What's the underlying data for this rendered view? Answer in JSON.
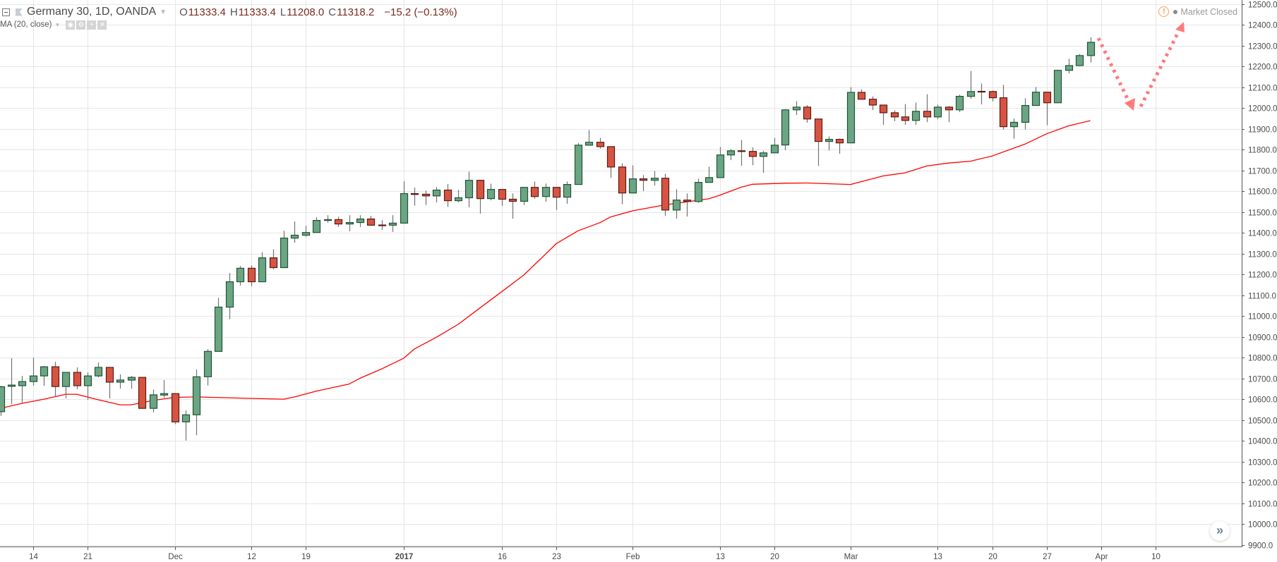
{
  "header": {
    "symbol_title": "Germany 30, 1D, OANDA",
    "ohlc": [
      {
        "key": "O",
        "value": "11333.4"
      },
      {
        "key": "H",
        "value": "11333.4"
      },
      {
        "key": "L",
        "value": "11208.0"
      },
      {
        "key": "C",
        "value": "11318.2"
      }
    ],
    "change": "−15.2 (−0.13%)",
    "study_label": "MA (20, close)",
    "study_buttons": [
      "eye-icon",
      "gear-icon",
      "plus-icon",
      "close-icon"
    ],
    "market_status": "Market Closed",
    "market_status_icon": "warning-icon"
  },
  "scroll_button_icon": "double-chevron-right-icon",
  "colors": {
    "up_fill": "#6ba583",
    "up_border": "#225437",
    "down_fill": "#d75442",
    "down_border": "#5b1a13",
    "wick": "#737375",
    "ma": "#ff0000",
    "annotation": "#ff7b7b",
    "grid": "#e6e6e6"
  },
  "chart_data": {
    "type": "candlestick",
    "title": "",
    "ylim": [
      9900,
      12500
    ],
    "grid": true,
    "y_ticks": [
      "12500.0",
      "12400.0",
      "12300.0",
      "12200.0",
      "12100.0",
      "12000.0",
      "11900.0",
      "11800.0",
      "11700.0",
      "11600.0",
      "11500.0",
      "11400.0",
      "11300.0",
      "11200.0",
      "11100.0",
      "11000.0",
      "10900.0",
      "10800.0",
      "10700.0",
      "10600.0",
      "10500.0",
      "10400.0",
      "10300.0",
      "10200.0",
      "10100.0",
      "10000.0",
      "9900.0"
    ],
    "x_ticks": [
      {
        "date": "2016-11-14",
        "label": "14"
      },
      {
        "date": "2016-11-21",
        "label": "21"
      },
      {
        "date": "2016-12-01",
        "label": "Dec"
      },
      {
        "date": "2016-12-12",
        "label": "12"
      },
      {
        "date": "2016-12-19",
        "label": "19"
      },
      {
        "date": "2017-01-03",
        "label": "2017",
        "bold": true
      },
      {
        "date": "2017-01-16",
        "label": "16"
      },
      {
        "date": "2017-01-23",
        "label": "23"
      },
      {
        "date": "2017-02-01",
        "label": "Feb"
      },
      {
        "date": "2017-02-13",
        "label": "13"
      },
      {
        "date": "2017-02-20",
        "label": "20"
      },
      {
        "date": "2017-03-01",
        "label": "Mar"
      },
      {
        "date": "2017-03-13",
        "label": "13"
      },
      {
        "date": "2017-03-20",
        "label": "20"
      },
      {
        "date": "2017-03-27",
        "label": "27"
      },
      {
        "date": "2017-04-03",
        "label": "Apr"
      },
      {
        "date": "2017-04-10",
        "label": "10"
      }
    ],
    "future_dates": [
      "2017-04-03",
      "2017-04-04",
      "2017-04-05",
      "2017-04-06",
      "2017-04-07",
      "2017-04-10"
    ],
    "candles_fields": [
      "date",
      "open",
      "high",
      "low",
      "close"
    ],
    "candles": [
      [
        "2016-11-09",
        10540,
        10665,
        10520,
        10660
      ],
      [
        "2016-11-10",
        10662,
        10797,
        10577,
        10668
      ],
      [
        "2016-11-11",
        10665,
        10712,
        10583,
        10685
      ],
      [
        "2016-11-14",
        10685,
        10800,
        10665,
        10712
      ],
      [
        "2016-11-15",
        10712,
        10760,
        10665,
        10756
      ],
      [
        "2016-11-16",
        10756,
        10780,
        10610,
        10661
      ],
      [
        "2016-11-17",
        10661,
        10729,
        10604,
        10729
      ],
      [
        "2016-11-18",
        10729,
        10753,
        10648,
        10665
      ],
      [
        "2016-11-21",
        10665,
        10729,
        10597,
        10712
      ],
      [
        "2016-11-22",
        10712,
        10777,
        10705,
        10753
      ],
      [
        "2016-11-23",
        10753,
        10753,
        10604,
        10682
      ],
      [
        "2016-11-24",
        10682,
        10719,
        10651,
        10692
      ],
      [
        "2016-11-25",
        10692,
        10712,
        10651,
        10705
      ],
      [
        "2016-11-28",
        10705,
        10705,
        10556,
        10556
      ],
      [
        "2016-11-29",
        10556,
        10646,
        10537,
        10621
      ],
      [
        "2016-11-30",
        10620,
        10692,
        10607,
        10627
      ],
      [
        "2016-12-01",
        10627,
        10627,
        10480,
        10491
      ],
      [
        "2016-12-02",
        10491,
        10546,
        10401,
        10525
      ],
      [
        "2016-12-05",
        10525,
        10743,
        10427,
        10708
      ],
      [
        "2016-12-06",
        10708,
        10841,
        10666,
        10830
      ],
      [
        "2016-12-07",
        10830,
        11088,
        10830,
        11043
      ],
      [
        "2016-12-08",
        11043,
        11207,
        10985,
        11165
      ],
      [
        "2016-12-09",
        11165,
        11241,
        11147,
        11230
      ],
      [
        "2016-12-12",
        11230,
        11244,
        11144,
        11165
      ],
      [
        "2016-12-13",
        11165,
        11307,
        11165,
        11280
      ],
      [
        "2016-12-14",
        11280,
        11321,
        11225,
        11233
      ],
      [
        "2016-12-15",
        11233,
        11410,
        11233,
        11375
      ],
      [
        "2016-12-16",
        11375,
        11455,
        11353,
        11389
      ],
      [
        "2016-12-19",
        11389,
        11434,
        11382,
        11402
      ],
      [
        "2016-12-20",
        11402,
        11475,
        11402,
        11460
      ],
      [
        "2016-12-21",
        11460,
        11485,
        11449,
        11464
      ],
      [
        "2016-12-22",
        11464,
        11478,
        11429,
        11443
      ],
      [
        "2016-12-23",
        11443,
        11485,
        11408,
        11450
      ],
      [
        "2016-12-27",
        11450,
        11485,
        11429,
        11467
      ],
      [
        "2016-12-28",
        11467,
        11482,
        11437,
        11437
      ],
      [
        "2016-12-29",
        11438,
        11461,
        11415,
        11436
      ],
      [
        "2016-12-30",
        11437,
        11485,
        11405,
        11447
      ],
      [
        "2017-01-03",
        11447,
        11648,
        11447,
        11589
      ],
      [
        "2017-01-04",
        11589,
        11618,
        11531,
        11585
      ],
      [
        "2017-01-05",
        11586,
        11604,
        11534,
        11578
      ],
      [
        "2017-01-06",
        11578,
        11621,
        11547,
        11606
      ],
      [
        "2017-01-09",
        11606,
        11635,
        11525,
        11555
      ],
      [
        "2017-01-10",
        11555,
        11607,
        11547,
        11569
      ],
      [
        "2017-01-11",
        11569,
        11695,
        11523,
        11653
      ],
      [
        "2017-01-12",
        11653,
        11653,
        11493,
        11565
      ],
      [
        "2017-01-13",
        11565,
        11637,
        11557,
        11609
      ],
      [
        "2017-01-16",
        11609,
        11609,
        11530,
        11562
      ],
      [
        "2017-01-17",
        11562,
        11590,
        11468,
        11552
      ],
      [
        "2017-01-18",
        11552,
        11619,
        11534,
        11619
      ],
      [
        "2017-01-19",
        11619,
        11647,
        11564,
        11575
      ],
      [
        "2017-01-20",
        11575,
        11637,
        11550,
        11619
      ],
      [
        "2017-01-23",
        11619,
        11619,
        11510,
        11572
      ],
      [
        "2017-01-24",
        11572,
        11647,
        11540,
        11633
      ],
      [
        "2017-01-25",
        11633,
        11833,
        11633,
        11822
      ],
      [
        "2017-01-26",
        11822,
        11894,
        11822,
        11836
      ],
      [
        "2017-01-27",
        11836,
        11857,
        11805,
        11815
      ],
      [
        "2017-01-30",
        11815,
        11815,
        11665,
        11717
      ],
      [
        "2017-01-31",
        11717,
        11735,
        11538,
        11592
      ],
      [
        "2017-02-01",
        11592,
        11725,
        11592,
        11660
      ],
      [
        "2017-02-02",
        11660,
        11678,
        11601,
        11653
      ],
      [
        "2017-02-03",
        11653,
        11698,
        11628,
        11663
      ],
      [
        "2017-02-06",
        11663,
        11684,
        11482,
        11510
      ],
      [
        "2017-02-07",
        11510,
        11610,
        11469,
        11558
      ],
      [
        "2017-02-08",
        11558,
        11590,
        11479,
        11551
      ],
      [
        "2017-02-09",
        11551,
        11661,
        11545,
        11643
      ],
      [
        "2017-02-10",
        11643,
        11718,
        11643,
        11666
      ],
      [
        "2017-02-13",
        11666,
        11813,
        11666,
        11775
      ],
      [
        "2017-02-14",
        11775,
        11803,
        11750,
        11795
      ],
      [
        "2017-02-15",
        11795,
        11847,
        11723,
        11792
      ],
      [
        "2017-02-16",
        11792,
        11812,
        11726,
        11768
      ],
      [
        "2017-02-17",
        11768,
        11795,
        11689,
        11785
      ],
      [
        "2017-02-20",
        11785,
        11857,
        11785,
        11822
      ],
      [
        "2017-02-21",
        11823,
        11996,
        11798,
        11992
      ],
      [
        "2017-02-22",
        11992,
        12034,
        11967,
        12005
      ],
      [
        "2017-02-23",
        12005,
        12015,
        11930,
        11948
      ],
      [
        "2017-02-24",
        11948,
        11948,
        11722,
        11840
      ],
      [
        "2017-02-27",
        11840,
        11864,
        11796,
        11850
      ],
      [
        "2017-02-28",
        11850,
        11854,
        11781,
        11833
      ],
      [
        "2017-03-01",
        11833,
        12101,
        11833,
        12076
      ],
      [
        "2017-03-02",
        12076,
        12091,
        12043,
        12043
      ],
      [
        "2017-03-03",
        12043,
        12057,
        11991,
        12015
      ],
      [
        "2017-03-06",
        12015,
        12015,
        11920,
        11978
      ],
      [
        "2017-03-07",
        11978,
        11990,
        11937,
        11958
      ],
      [
        "2017-03-08",
        11958,
        12020,
        11920,
        11941
      ],
      [
        "2017-03-09",
        11941,
        12027,
        11920,
        11985
      ],
      [
        "2017-03-10",
        11985,
        12067,
        11933,
        11958
      ],
      [
        "2017-03-13",
        11958,
        12017,
        11947,
        12005
      ],
      [
        "2017-03-14",
        12005,
        12010,
        11932,
        11992
      ],
      [
        "2017-03-15",
        11992,
        12065,
        11981,
        12057
      ],
      [
        "2017-03-16",
        12057,
        12179,
        12045,
        12080
      ],
      [
        "2017-03-17",
        12081,
        12119,
        12018,
        12079
      ],
      [
        "2017-03-20",
        12080,
        12085,
        12032,
        12050
      ],
      [
        "2017-03-21",
        12050,
        12112,
        11897,
        11911
      ],
      [
        "2017-03-22",
        11911,
        11950,
        11853,
        11932
      ],
      [
        "2017-03-23",
        11932,
        12048,
        11897,
        12013
      ],
      [
        "2017-03-24",
        12013,
        12102,
        12013,
        12077
      ],
      [
        "2017-03-27",
        12077,
        12077,
        11918,
        12026
      ],
      [
        "2017-03-28",
        12026,
        12185,
        12026,
        12182
      ],
      [
        "2017-03-29",
        12182,
        12237,
        12167,
        12205
      ],
      [
        "2017-03-30",
        12205,
        12261,
        12202,
        12253
      ],
      [
        "2017-03-31",
        12253,
        12341,
        12219,
        12317
      ]
    ],
    "ma_series": {
      "name": "MA (20, close)",
      "points": [
        [
          "2016-11-09",
          10556
        ],
        [
          "2016-11-11",
          10580
        ],
        [
          "2016-11-15",
          10600
        ],
        [
          "2016-11-17",
          10624
        ],
        [
          "2016-11-18",
          10624
        ],
        [
          "2016-11-22",
          10597
        ],
        [
          "2016-11-24",
          10573
        ],
        [
          "2016-11-25",
          10573
        ],
        [
          "2016-11-29",
          10594
        ],
        [
          "2016-12-01",
          10609
        ],
        [
          "2016-12-05",
          10611
        ],
        [
          "2016-12-12",
          10604
        ],
        [
          "2016-12-15",
          10600
        ],
        [
          "2016-12-16",
          10611
        ],
        [
          "2016-12-20",
          10639
        ],
        [
          "2016-12-23",
          10673
        ],
        [
          "2016-12-27",
          10701
        ],
        [
          "2016-12-29",
          10746
        ],
        [
          "2017-01-03",
          10797
        ],
        [
          "2017-01-04",
          10842
        ],
        [
          "2017-01-06",
          10898
        ],
        [
          "2017-01-10",
          10960
        ],
        [
          "2017-01-12",
          11039
        ],
        [
          "2017-01-16",
          11117
        ],
        [
          "2017-01-18",
          11196
        ],
        [
          "2017-01-20",
          11297
        ],
        [
          "2017-01-23",
          11348
        ],
        [
          "2017-01-25",
          11410
        ],
        [
          "2017-01-27",
          11449
        ],
        [
          "2017-01-30",
          11477
        ],
        [
          "2017-02-01",
          11506
        ],
        [
          "2017-02-06",
          11535
        ],
        [
          "2017-02-10",
          11564
        ],
        [
          "2017-02-13",
          11581
        ],
        [
          "2017-02-15",
          11620
        ],
        [
          "2017-02-16",
          11634
        ],
        [
          "2017-02-21",
          11639
        ],
        [
          "2017-02-23",
          11640
        ],
        [
          "2017-03-01",
          11633
        ],
        [
          "2017-03-06",
          11674
        ],
        [
          "2017-03-08",
          11689
        ],
        [
          "2017-03-10",
          11722
        ],
        [
          "2017-03-14",
          11736
        ],
        [
          "2017-03-16",
          11745
        ],
        [
          "2017-03-20",
          11770
        ],
        [
          "2017-03-23",
          11827
        ],
        [
          "2017-03-27",
          11877
        ],
        [
          "2017-03-29",
          11915
        ],
        [
          "2017-03-31",
          11940
        ]
      ]
    }
  }
}
